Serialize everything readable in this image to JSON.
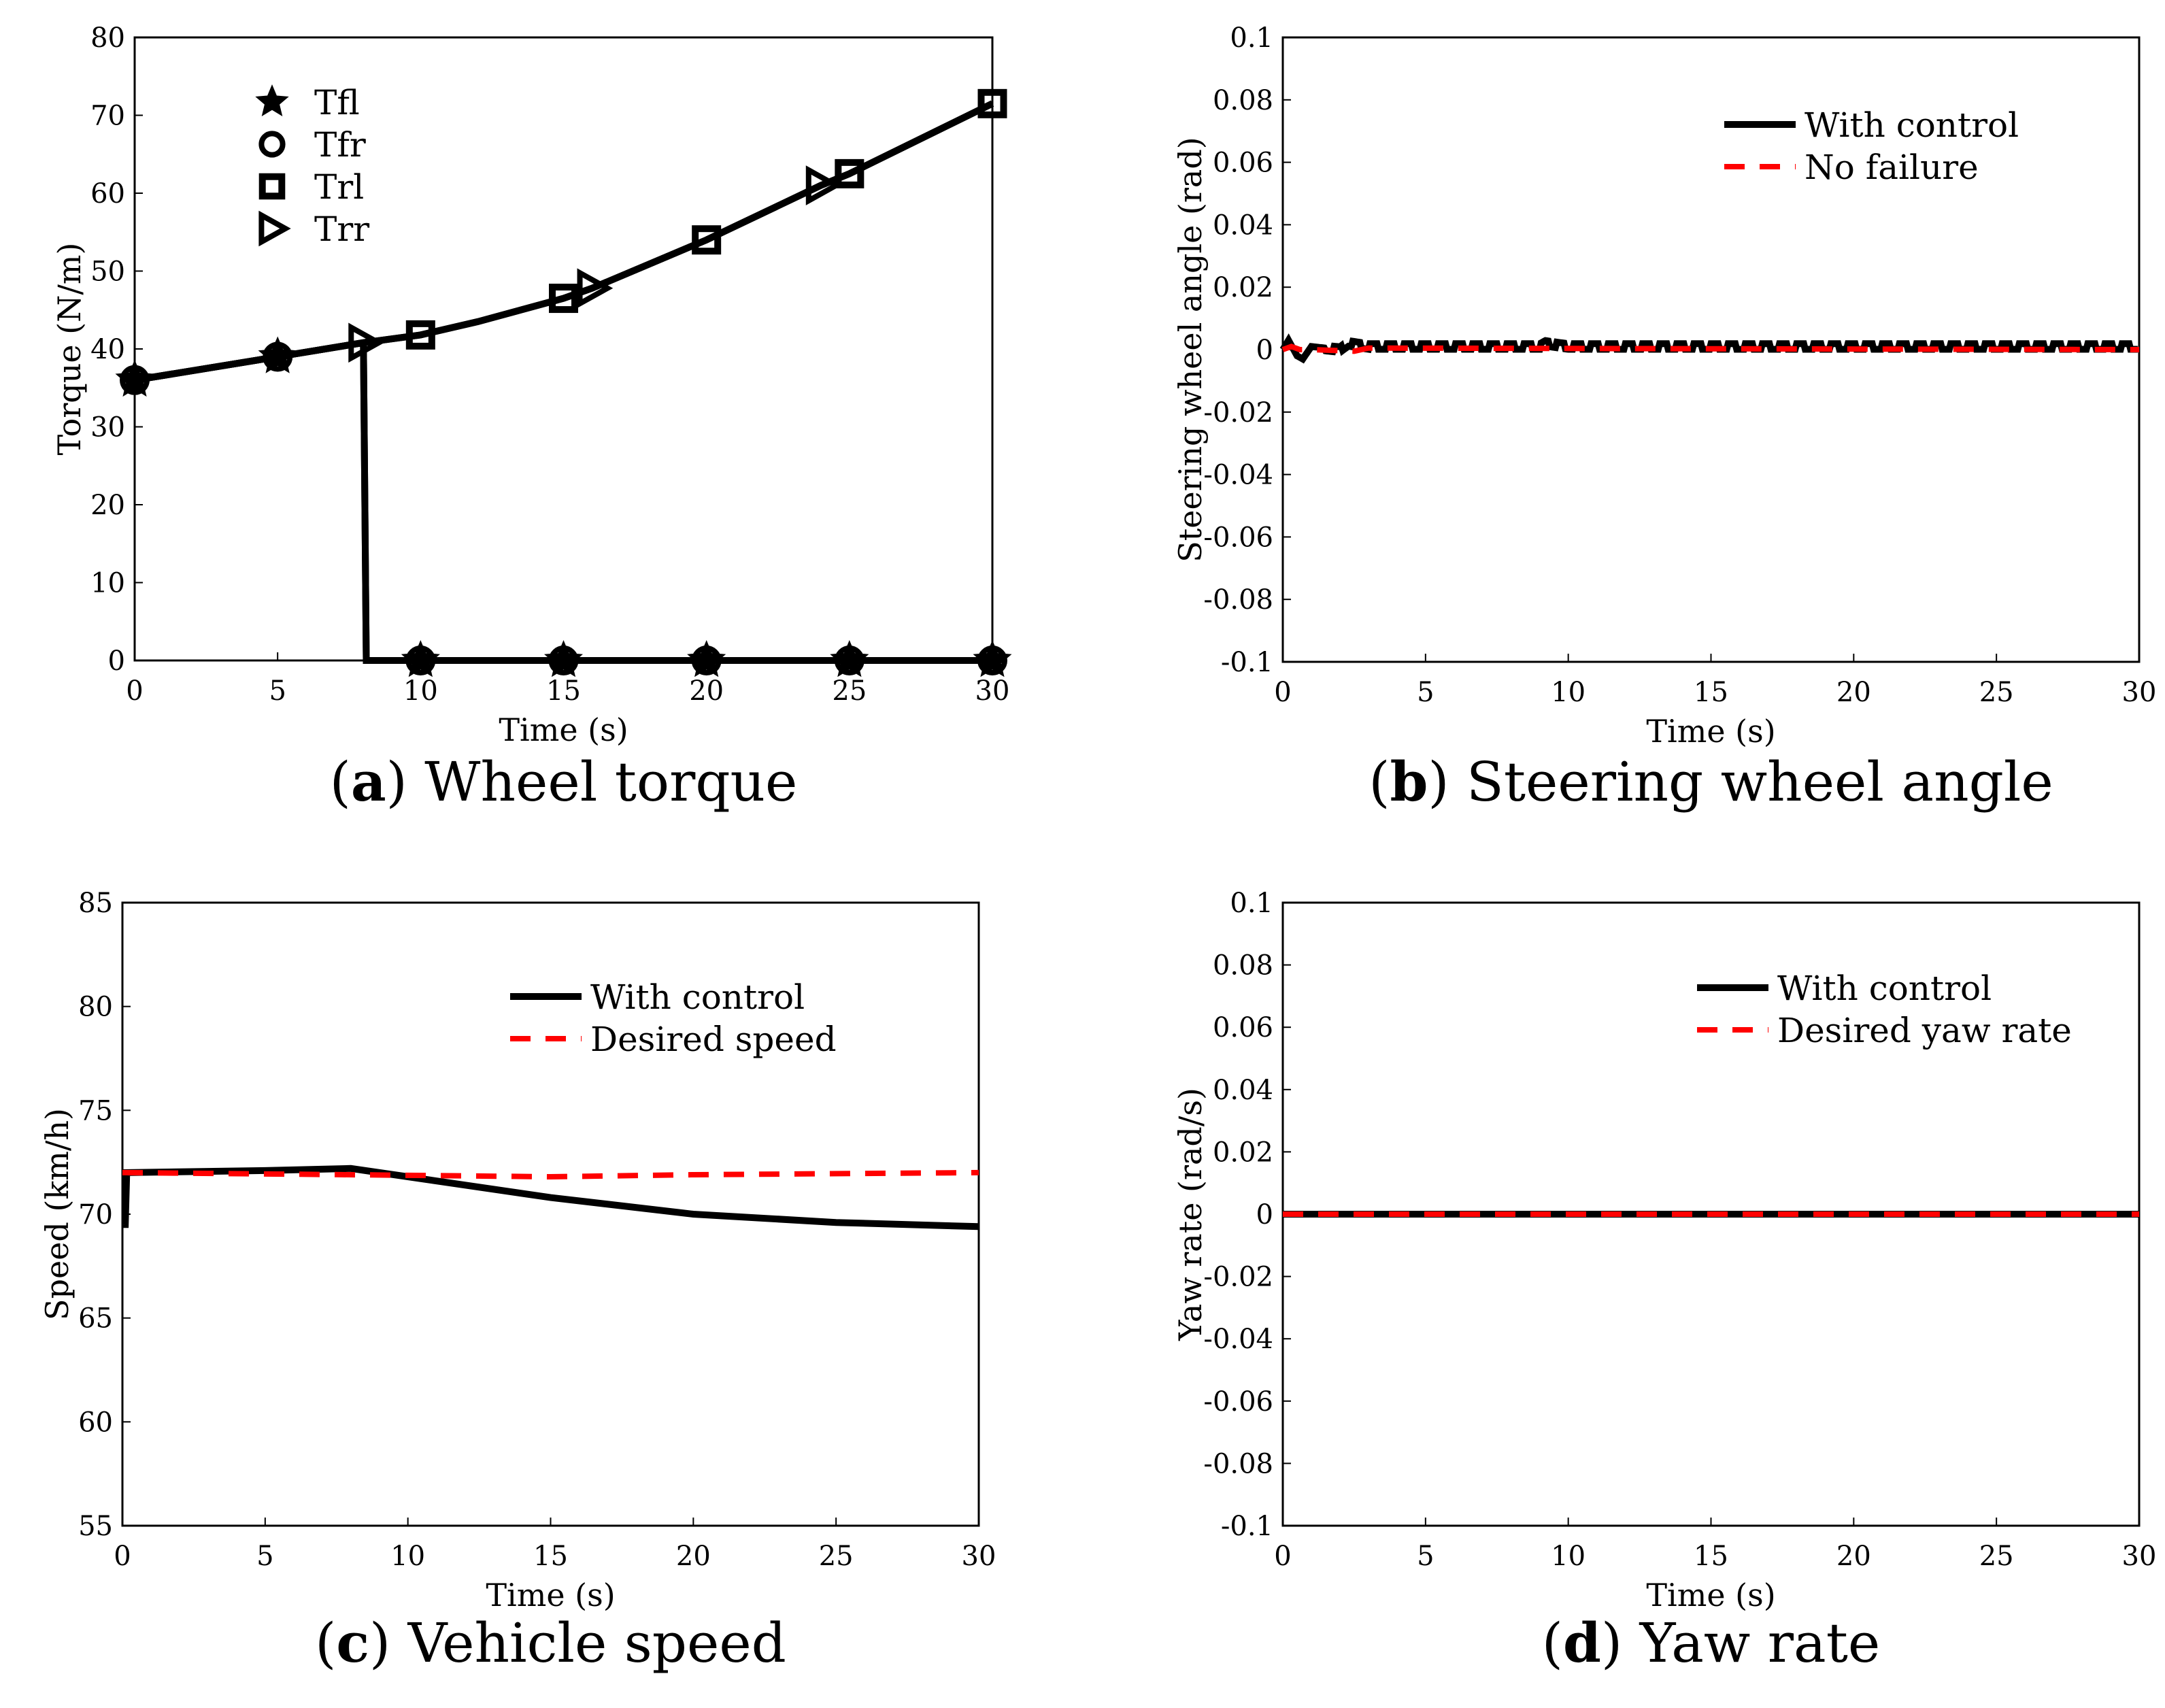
{
  "chart_data": [
    {
      "id": "a",
      "type": "line",
      "caption_letter": "a",
      "caption": " Wheel torque",
      "xlabel": "Time (s)",
      "ylabel": "Torque (N/m)",
      "xlim": [
        0,
        30
      ],
      "ylim": [
        0,
        80
      ],
      "xticks": [
        0,
        5,
        10,
        15,
        20,
        25,
        30
      ],
      "yticks": [
        0,
        10,
        20,
        30,
        40,
        50,
        60,
        70,
        80
      ],
      "legend": "top-left",
      "series": [
        {
          "name": "Tfl",
          "marker": "star",
          "color": "#000000",
          "x": [
            0,
            5,
            8,
            8.1,
            10,
            15,
            20,
            25,
            30
          ],
          "y": [
            36,
            39,
            40.8,
            0,
            0,
            0,
            0,
            0,
            0
          ],
          "marker_x": [
            0,
            5,
            10,
            15,
            20,
            25,
            30
          ]
        },
        {
          "name": "Tfr",
          "marker": "circle",
          "color": "#000000",
          "x": [
            0,
            5,
            8,
            8.1,
            10,
            15,
            20,
            25,
            30
          ],
          "y": [
            36,
            39,
            40.8,
            0,
            0,
            0,
            0,
            0,
            0
          ],
          "marker_x": [
            0,
            5,
            10,
            15,
            20,
            25,
            30
          ]
        },
        {
          "name": "Trl",
          "marker": "square",
          "color": "#000000",
          "x": [
            0,
            5,
            8,
            10,
            12,
            15,
            16,
            20,
            24,
            25,
            30
          ],
          "y": [
            36,
            39,
            40.8,
            41.8,
            43.5,
            46.5,
            47.8,
            54,
            61,
            62.5,
            71.5
          ],
          "marker_x": [
            10,
            15,
            20,
            25,
            30
          ]
        },
        {
          "name": "Trr",
          "marker": "triangle",
          "color": "#000000",
          "x": [
            0,
            5,
            8,
            10,
            12,
            15,
            16,
            20,
            24,
            25,
            30
          ],
          "y": [
            36,
            39,
            40.8,
            41.8,
            43.5,
            46.5,
            47.8,
            54,
            61,
            62.5,
            71.5
          ],
          "marker_x": [
            8,
            16,
            24
          ]
        }
      ]
    },
    {
      "id": "b",
      "type": "line",
      "caption_letter": "b",
      "caption": " Steering wheel angle",
      "xlabel": "Time (s)",
      "ylabel": "Steering wheel angle (rad)",
      "xlim": [
        0,
        30
      ],
      "ylim": [
        -0.1,
        0.1
      ],
      "xticks": [
        0,
        5,
        10,
        15,
        20,
        25,
        30
      ],
      "yticks": [
        -0.1,
        -0.08,
        -0.06,
        -0.04,
        -0.02,
        0,
        0.02,
        0.04,
        0.06,
        0.08,
        0.1
      ],
      "legend": "top-right",
      "series": [
        {
          "name": "With control",
          "style": "solid",
          "color": "#000000",
          "oscillating": true,
          "amplitude": 0.0015,
          "period": 0.6,
          "x": [
            0,
            0.2,
            0.5,
            0.7,
            1,
            2,
            2.3,
            3,
            9,
            9.2,
            10,
            30
          ],
          "y": [
            0,
            0.003,
            -0.002,
            -0.003,
            0.001,
            0,
            0.002,
            0.001,
            0.001,
            0.002,
            0.001,
            0.001
          ]
        },
        {
          "name": "No failure",
          "style": "dashed",
          "color": "#ff0000",
          "x": [
            0,
            0.3,
            0.6,
            1,
            2.5,
            3,
            30
          ],
          "y": [
            0,
            0.001,
            0,
            0,
            -0.0005,
            0.0005,
            0
          ]
        }
      ]
    },
    {
      "id": "c",
      "type": "line",
      "caption_letter": "c",
      "caption": " Vehicle speed",
      "xlabel": "Time (s)",
      "ylabel": "Speed (km/h)",
      "xlim": [
        0,
        30
      ],
      "ylim": [
        55,
        85
      ],
      "xticks": [
        0,
        5,
        10,
        15,
        20,
        25,
        30
      ],
      "yticks": [
        55,
        60,
        65,
        70,
        75,
        80,
        85
      ],
      "legend": "top-right",
      "series": [
        {
          "name": "With control",
          "style": "solid",
          "color": "#000000",
          "x": [
            0,
            0.1,
            0.15,
            5,
            8,
            10,
            15,
            20,
            25,
            30
          ],
          "y": [
            69.5,
            69.5,
            72,
            72.1,
            72.2,
            71.8,
            70.8,
            70,
            69.6,
            69.4
          ]
        },
        {
          "name": "Desired speed",
          "style": "dashed",
          "color": "#ff0000",
          "x": [
            0,
            8,
            15,
            20,
            30
          ],
          "y": [
            72,
            71.9,
            71.8,
            71.9,
            72
          ]
        }
      ]
    },
    {
      "id": "d",
      "type": "line",
      "caption_letter": "d",
      "caption": " Yaw rate",
      "xlabel": "Time (s)",
      "ylabel": "Yaw rate (rad/s)",
      "xlim": [
        0,
        30
      ],
      "ylim": [
        -0.1,
        0.1
      ],
      "xticks": [
        0,
        5,
        10,
        15,
        20,
        25,
        30
      ],
      "yticks": [
        -0.1,
        -0.08,
        -0.06,
        -0.04,
        -0.02,
        0,
        0.02,
        0.04,
        0.06,
        0.08,
        0.1
      ],
      "legend": "top-right",
      "series": [
        {
          "name": "With control",
          "style": "solid",
          "color": "#000000",
          "x": [
            0,
            30
          ],
          "y": [
            0,
            0
          ]
        },
        {
          "name": "Desired yaw rate",
          "style": "dashed",
          "color": "#ff0000",
          "x": [
            0,
            30
          ],
          "y": [
            0,
            0
          ]
        }
      ]
    }
  ]
}
